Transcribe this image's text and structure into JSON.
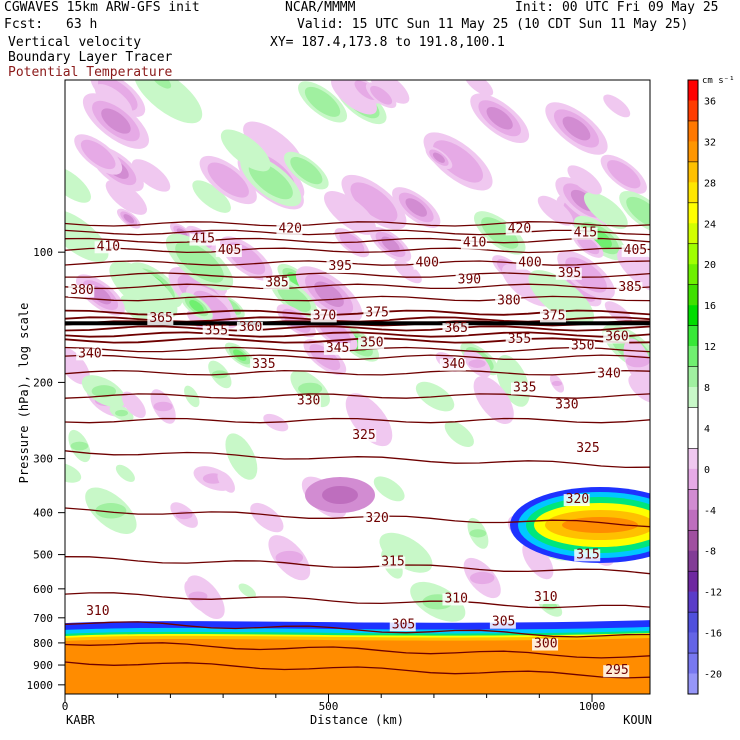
{
  "header": {
    "model_line": "CGWAVES 15km ARW-GFS init",
    "source": "NCAR/MMMM",
    "init": "Init: 00 UTC Fri 09 May 25",
    "fcst_label": "Fcst:",
    "fcst_value": "63 h",
    "valid": "Valid: 15 UTC Sun 11 May 25 (10 CDT Sun 11 May 25)",
    "fields": [
      "Vertical velocity",
      "Boundary Layer Tracer"
    ],
    "field_red": "Potential Temperature",
    "xy": "XY= 187.4,173.8 to 191.8,100.1"
  },
  "chart_data": {
    "type": "heatmap",
    "xlabel": "Distance (km)",
    "ylabel": "Pressure (hPa), log scale",
    "x_range": [
      0,
      1110
    ],
    "y_range_hPa": [
      1050,
      40
    ],
    "y_scale": "log",
    "x_ticks": [
      "0",
      "500",
      "1000"
    ],
    "x_tick_values": [
      0,
      500,
      1000
    ],
    "y_ticks": [
      "100",
      "200",
      "300",
      "400",
      "500",
      "600",
      "700",
      "800",
      "900",
      "1000"
    ],
    "y_tick_values": [
      100,
      200,
      300,
      400,
      500,
      600,
      700,
      800,
      900,
      1000
    ],
    "endpoint_labels": {
      "left": "KABR",
      "right": "KOUN"
    },
    "colorbar": {
      "units": "cm s⁻¹",
      "labels": [
        "36",
        "32",
        "28",
        "24",
        "20",
        "16",
        "12",
        "8",
        "4",
        "0",
        "-4",
        "-8",
        "-12",
        "-16",
        "-20"
      ],
      "colors": [
        "#ff0000",
        "#ff3c00",
        "#ff7800",
        "#ff9600",
        "#ffc000",
        "#ffe600",
        "#ffff00",
        "#d2ff00",
        "#a0ff00",
        "#6ef000",
        "#40e000",
        "#00dc00",
        "#38e838",
        "#70f070",
        "#a0f0a0",
        "#c8f8c8",
        "#ffffff",
        "#ffffff",
        "#f0c8f0",
        "#e6aae6",
        "#d28cd2",
        "#be6ebe",
        "#a050a0",
        "#823c96",
        "#6e28a0",
        "#5a3cc8",
        "#5050dc",
        "#6464e6",
        "#7878f0",
        "#9696f8"
      ]
    },
    "theta_contours": [
      {
        "value": 295,
        "p": 920
      },
      {
        "value": 300,
        "p": 830
      },
      {
        "value": 305,
        "p": 745
      },
      {
        "value": 310,
        "p": 640
      },
      {
        "value": 315,
        "p": 530
      },
      {
        "value": 320,
        "p": 410
      },
      {
        "value": 325,
        "p": 300
      },
      {
        "value": 330,
        "p": 245
      },
      {
        "value": 335,
        "p": 215
      },
      {
        "value": 340,
        "p": 190
      },
      {
        "value": 345,
        "p": 175
      },
      {
        "value": 350,
        "p": 168
      },
      {
        "value": 355,
        "p": 160
      },
      {
        "value": 360,
        "p": 155
      },
      {
        "value": 365,
        "p": 150
      },
      {
        "value": 370,
        "p": 146
      },
      {
        "value": 375,
        "p": 143
      },
      {
        "value": 380,
        "p": 138
      },
      {
        "value": 385,
        "p": 128
      },
      {
        "value": 390,
        "p": 120
      },
      {
        "value": 395,
        "p": 113
      },
      {
        "value": 400,
        "p": 106
      },
      {
        "value": 405,
        "p": 99
      },
      {
        "value": 410,
        "p": 94
      },
      {
        "value": 415,
        "p": 90
      },
      {
        "value": 420,
        "p": 86
      }
    ],
    "theta_labels": [
      {
        "text": "410",
        "x": 60,
        "p": 99
      },
      {
        "text": "415",
        "x": 240,
        "p": 95
      },
      {
        "text": "420",
        "x": 405,
        "p": 90
      },
      {
        "text": "405",
        "x": 290,
        "p": 101
      },
      {
        "text": "410",
        "x": 755,
        "p": 97
      },
      {
        "text": "420",
        "x": 840,
        "p": 90
      },
      {
        "text": "415",
        "x": 965,
        "p": 92
      },
      {
        "text": "405",
        "x": 1060,
        "p": 101
      },
      {
        "text": "380",
        "x": 10,
        "p": 125
      },
      {
        "text": "385",
        "x": 380,
        "p": 120
      },
      {
        "text": "395",
        "x": 500,
        "p": 110
      },
      {
        "text": "400",
        "x": 665,
        "p": 108
      },
      {
        "text": "390",
        "x": 745,
        "p": 118
      },
      {
        "text": "400",
        "x": 860,
        "p": 108
      },
      {
        "text": "395",
        "x": 935,
        "p": 114
      },
      {
        "text": "385",
        "x": 1050,
        "p": 123
      },
      {
        "text": "380",
        "x": 820,
        "p": 132
      },
      {
        "text": "375",
        "x": 905,
        "p": 143
      },
      {
        "text": "375",
        "x": 570,
        "p": 141
      },
      {
        "text": "370",
        "x": 470,
        "p": 143
      },
      {
        "text": "365",
        "x": 160,
        "p": 145
      },
      {
        "text": "360",
        "x": 330,
        "p": 152
      },
      {
        "text": "355",
        "x": 265,
        "p": 155
      },
      {
        "text": "365",
        "x": 720,
        "p": 153
      },
      {
        "text": "355",
        "x": 840,
        "p": 162
      },
      {
        "text": "350",
        "x": 960,
        "p": 168
      },
      {
        "text": "360",
        "x": 1025,
        "p": 160
      },
      {
        "text": "350",
        "x": 560,
        "p": 165
      },
      {
        "text": "345",
        "x": 495,
        "p": 170
      },
      {
        "text": "340",
        "x": 25,
        "p": 175
      },
      {
        "text": "335",
        "x": 355,
        "p": 185
      },
      {
        "text": "340",
        "x": 715,
        "p": 185
      },
      {
        "text": "340",
        "x": 1010,
        "p": 195
      },
      {
        "text": "335",
        "x": 850,
        "p": 210
      },
      {
        "text": "330",
        "x": 440,
        "p": 225
      },
      {
        "text": "330",
        "x": 930,
        "p": 230
      },
      {
        "text": "325",
        "x": 545,
        "p": 270
      },
      {
        "text": "325",
        "x": 970,
        "p": 290
      },
      {
        "text": "320",
        "x": 570,
        "p": 420
      },
      {
        "text": "320",
        "x": 950,
        "p": 380
      },
      {
        "text": "315",
        "x": 600,
        "p": 530
      },
      {
        "text": "315",
        "x": 970,
        "p": 510
      },
      {
        "text": "310",
        "x": 40,
        "p": 690
      },
      {
        "text": "310",
        "x": 720,
        "p": 645
      },
      {
        "text": "310",
        "x": 890,
        "p": 640
      },
      {
        "text": "305",
        "x": 620,
        "p": 740
      },
      {
        "text": "305",
        "x": 810,
        "p": 730
      },
      {
        "text": "300",
        "x": 890,
        "p": 820
      },
      {
        "text": "295",
        "x": 1025,
        "p": 945
      }
    ]
  }
}
